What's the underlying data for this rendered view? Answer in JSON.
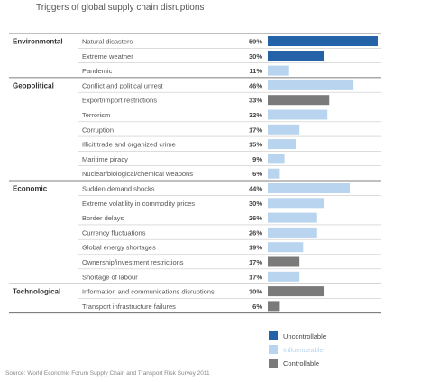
{
  "title": "Triggers of global supply chain disruptions",
  "source": "Source: World Economic Forum Supply Chain and Transport Risk Survey 2011",
  "colors": {
    "uncontrollable": "#2563a8",
    "influenceable": "#b8d4ee",
    "controllable": "#7a7a7a"
  },
  "legend": [
    {
      "key": "uncontrollable",
      "label": "Uncontrollable"
    },
    {
      "key": "influenceable",
      "label": "Influenceable"
    },
    {
      "key": "controllable",
      "label": "Controllable"
    }
  ],
  "chart_data": {
    "type": "bar",
    "orientation": "horizontal",
    "title": "Triggers of global supply chain disruptions",
    "xlim": [
      0,
      59
    ],
    "groups": [
      {
        "name": "Environmental",
        "items": [
          {
            "label": "Natural disasters",
            "value": 59,
            "value_label": "59%",
            "category": "uncontrollable"
          },
          {
            "label": "Extreme weather",
            "value": 30,
            "value_label": "30%",
            "category": "uncontrollable"
          },
          {
            "label": "Pandemic",
            "value": 11,
            "value_label": "11%",
            "category": "influenceable"
          }
        ]
      },
      {
        "name": "Geopolitical",
        "items": [
          {
            "label": "Conflict and political unrest",
            "value": 46,
            "value_label": "46%",
            "category": "influenceable"
          },
          {
            "label": "Export/import restrictions",
            "value": 33,
            "value_label": "33%",
            "category": "controllable"
          },
          {
            "label": "Terrorism",
            "value": 32,
            "value_label": "32%",
            "category": "influenceable"
          },
          {
            "label": "Corruption",
            "value": 17,
            "value_label": "17%",
            "category": "influenceable"
          },
          {
            "label": "Illicit trade and organized crime",
            "value": 15,
            "value_label": "15%",
            "category": "influenceable"
          },
          {
            "label": "Maritime piracy",
            "value": 9,
            "value_label": "9%",
            "category": "influenceable"
          },
          {
            "label": "Nuclear/biological/chemical weapons",
            "value": 6,
            "value_label": "6%",
            "category": "influenceable"
          }
        ]
      },
      {
        "name": "Economic",
        "items": [
          {
            "label": "Sudden demand shocks",
            "value": 44,
            "value_label": "44%",
            "category": "influenceable"
          },
          {
            "label": "Extreme volatility in commodity prices",
            "value": 30,
            "value_label": "30%",
            "category": "influenceable"
          },
          {
            "label": "Border delays",
            "value": 26,
            "value_label": "26%",
            "category": "influenceable"
          },
          {
            "label": "Currency fluctuations",
            "value": 26,
            "value_label": "26%",
            "category": "influenceable"
          },
          {
            "label": "Global energy shortages",
            "value": 19,
            "value_label": "19%",
            "category": "influenceable"
          },
          {
            "label": "Ownership/investment restrictions",
            "value": 17,
            "value_label": "17%",
            "category": "controllable"
          },
          {
            "label": "Shortage of labour",
            "value": 17,
            "value_label": "17%",
            "category": "influenceable"
          }
        ]
      },
      {
        "name": "Technological",
        "items": [
          {
            "label": "Information and communications disruptions",
            "value": 30,
            "value_label": "30%",
            "category": "controllable"
          },
          {
            "label": "Transport infrastructure failures",
            "value": 6,
            "value_label": "6%",
            "category": "controllable"
          }
        ]
      }
    ]
  }
}
